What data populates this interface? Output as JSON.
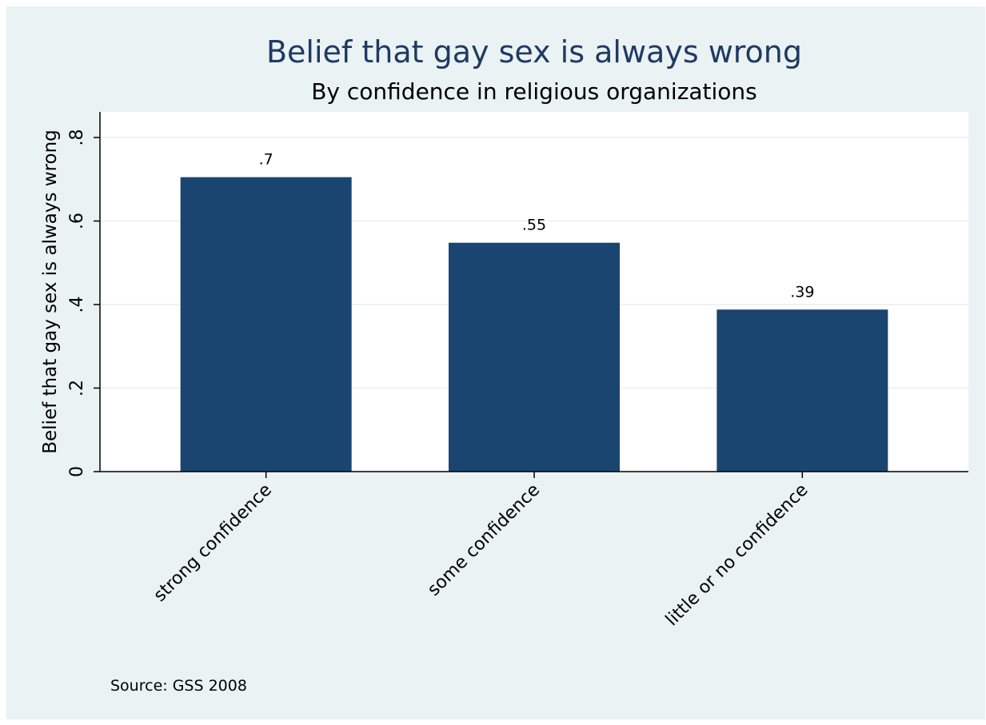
{
  "colors": {
    "outer_background": "#eaf2f3",
    "plot_background": "#ffffff",
    "bar": "#1b4571",
    "title": "#1f3a63",
    "text": "#000000",
    "grid": "#e9eeef"
  },
  "chart_data": {
    "type": "bar",
    "title": "Belief that gay sex is always wrong",
    "subtitle": "By confidence in religious organizations",
    "ylabel": "Belief that gay sex is always wrong",
    "xlabel": "",
    "categories": [
      "strong confidence",
      "some confidence",
      "little or no confidence"
    ],
    "values": [
      0.705,
      0.548,
      0.388
    ],
    "value_labels": [
      ".7",
      ".55",
      ".39"
    ],
    "ylim": [
      0,
      0.8
    ],
    "yticks": [
      0,
      0.2,
      0.4,
      0.6,
      0.8
    ],
    "ytick_labels": [
      "0",
      ".2",
      ".4",
      ".6",
      ".8"
    ],
    "grid": true,
    "legend": "none",
    "note": "Source: GSS 2008"
  }
}
